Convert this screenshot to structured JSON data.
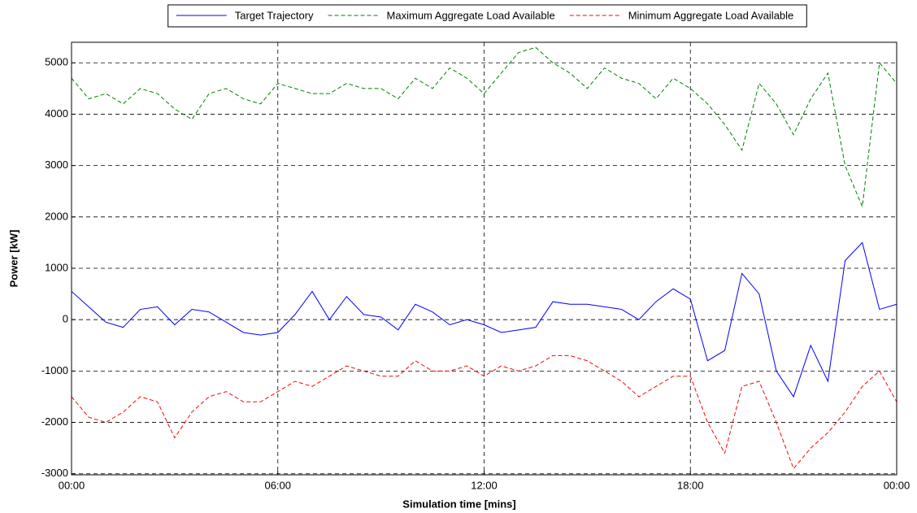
{
  "chart_data": {
    "type": "line",
    "xlabel": "Simulation time [mins]",
    "ylabel": "Power [kW]",
    "x": [
      0,
      30,
      60,
      90,
      120,
      150,
      180,
      210,
      240,
      270,
      300,
      330,
      360,
      390,
      420,
      450,
      480,
      510,
      540,
      570,
      600,
      630,
      660,
      690,
      720,
      750,
      780,
      810,
      840,
      870,
      900,
      930,
      960,
      990,
      1020,
      1050,
      1080,
      1110,
      1140,
      1170,
      1200,
      1230,
      1260,
      1290,
      1320,
      1350,
      1380,
      1410,
      1440
    ],
    "series": [
      {
        "name": "Target Trajectory",
        "color": "#0000ff",
        "style": "solid",
        "values": [
          550,
          250,
          -50,
          -150,
          200,
          250,
          -100,
          200,
          150,
          -50,
          -250,
          -300,
          -250,
          100,
          550,
          0,
          450,
          100,
          50,
          -200,
          300,
          150,
          -100,
          0,
          -100,
          -250,
          -200,
          -150,
          350,
          300,
          300,
          250,
          200,
          0,
          350,
          600,
          400,
          -800,
          -600,
          900,
          500,
          -1000,
          -1500,
          -500,
          -1200,
          1150,
          1500,
          200,
          300
        ]
      },
      {
        "name": "Maximum Aggregate Load Available",
        "color": "#008000",
        "style": "dashed",
        "values": [
          4700,
          4300,
          4400,
          4200,
          4500,
          4400,
          4100,
          3900,
          4400,
          4500,
          4300,
          4200,
          4600,
          4500,
          4400,
          4400,
          4600,
          4500,
          4500,
          4300,
          4700,
          4500,
          4900,
          4700,
          4400,
          4800,
          5200,
          5300,
          5000,
          4800,
          4500,
          4900,
          4700,
          4600,
          4300,
          4700,
          4500,
          4200,
          3800,
          3300,
          4600,
          4200,
          3600,
          4300,
          4800,
          3000,
          2200,
          5000,
          4600
        ]
      },
      {
        "name": "Minimum Aggregate Load Available",
        "color": "#ff0000",
        "style": "dashed",
        "values": [
          -1500,
          -1900,
          -2000,
          -1800,
          -1500,
          -1600,
          -2300,
          -1800,
          -1500,
          -1400,
          -1600,
          -1600,
          -1400,
          -1200,
          -1300,
          -1100,
          -900,
          -1000,
          -1100,
          -1100,
          -800,
          -1000,
          -1000,
          -900,
          -1100,
          -900,
          -1000,
          -900,
          -700,
          -700,
          -800,
          -1000,
          -1200,
          -1500,
          -1300,
          -1100,
          -1100,
          -2000,
          -2600,
          -1300,
          -1200,
          -2000,
          -2900,
          -2500,
          -2200,
          -1800,
          -1300,
          -1000,
          -1600
        ]
      }
    ],
    "xlim": [
      0,
      1440
    ],
    "xticks": [
      {
        "value": 0,
        "label": "00:00"
      },
      {
        "value": 360,
        "label": "06:00"
      },
      {
        "value": 720,
        "label": "12:00"
      },
      {
        "value": 1080,
        "label": "18:00"
      },
      {
        "value": 1440,
        "label": "00:00"
      }
    ],
    "ylim": [
      -3020,
      5400
    ],
    "yticks": [
      -3000,
      -2000,
      -1000,
      0,
      1000,
      2000,
      3000,
      4000,
      5000
    ],
    "grid": true,
    "legend": "top"
  }
}
